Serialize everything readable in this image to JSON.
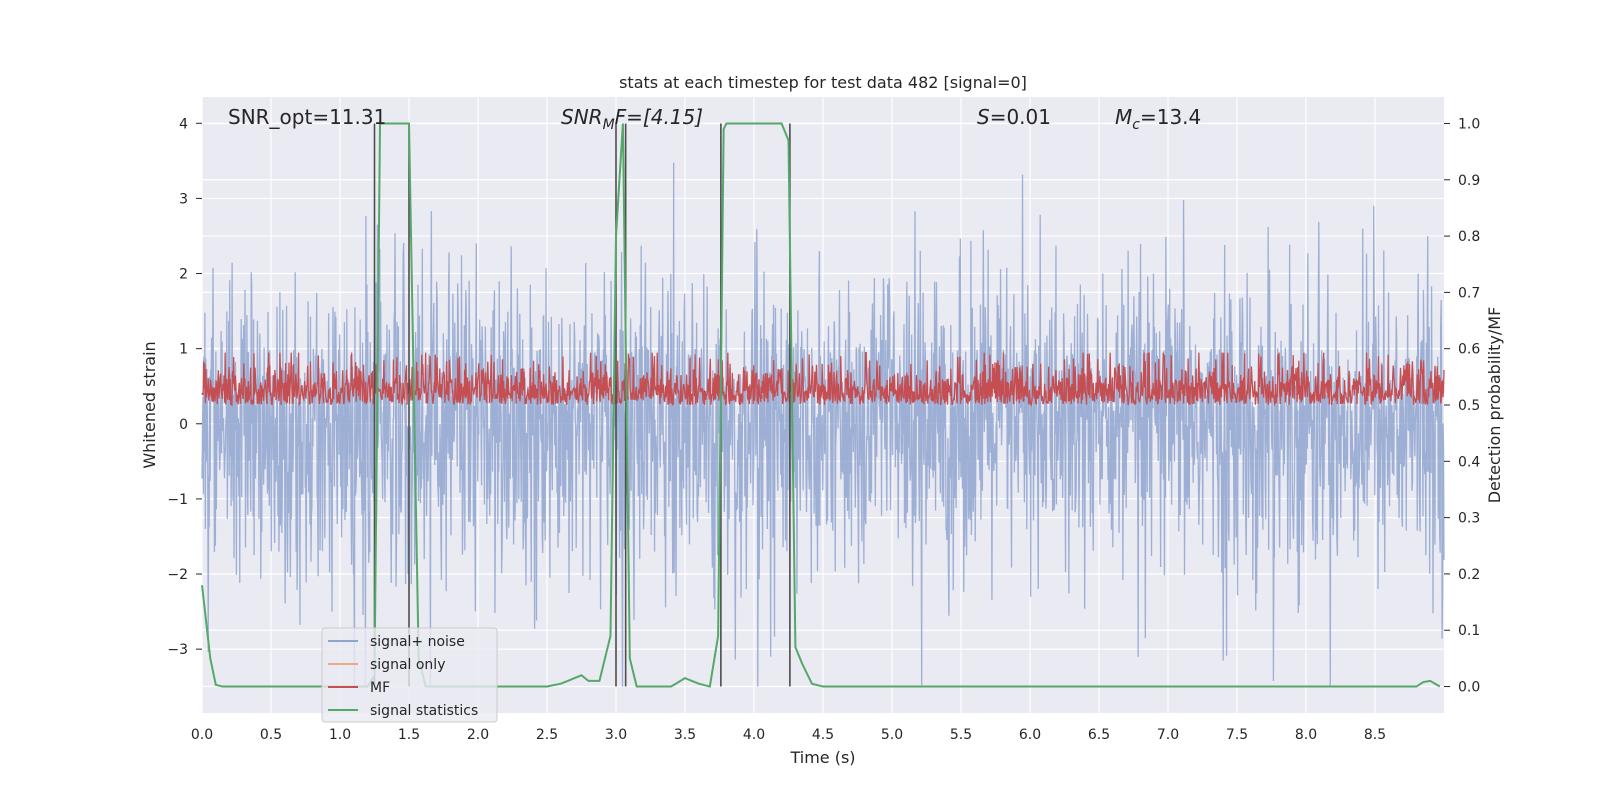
{
  "chart_data": {
    "type": "line",
    "title": "stats at each timestep for test data 482 [signal=0]",
    "xlabel": "Time (s)",
    "ylabel_left": "Whitened strain",
    "ylabel_right": "Detection probability/MF",
    "xlim": [
      0.0,
      9.0
    ],
    "ylim_left": [
      -3.85,
      4.35
    ],
    "ylim_right": [
      -0.047,
      1.047
    ],
    "x_ticks": [
      "0.0",
      "0.5",
      "1.0",
      "1.5",
      "2.0",
      "2.5",
      "3.0",
      "3.5",
      "4.0",
      "4.5",
      "5.0",
      "5.5",
      "6.0",
      "6.5",
      "7.0",
      "7.5",
      "8.0",
      "8.5"
    ],
    "x_tick_values": [
      0.0,
      0.5,
      1.0,
      1.5,
      2.0,
      2.5,
      3.0,
      3.5,
      4.0,
      4.5,
      5.0,
      5.5,
      6.0,
      6.5,
      7.0,
      7.5,
      8.0,
      8.5
    ],
    "y_left_ticks": [
      "−3",
      "−2",
      "−1",
      "0",
      "1",
      "2",
      "3",
      "4"
    ],
    "y_left_tick_values": [
      -3,
      -2,
      -1,
      0,
      1,
      2,
      3,
      4
    ],
    "y_right_ticks": [
      "0.0",
      "0.1",
      "0.2",
      "0.3",
      "0.4",
      "0.5",
      "0.6",
      "0.7",
      "0.8",
      "0.9",
      "1.0"
    ],
    "y_right_tick_values": [
      0.0,
      0.1,
      0.2,
      0.3,
      0.4,
      0.5,
      0.6,
      0.7,
      0.8,
      0.9,
      1.0
    ],
    "grid": true,
    "legend_position": "lower-left",
    "annotations": {
      "snr_opt": "SNR_opt=11.31",
      "snr_mf_main": "SNR",
      "snr_mf_sub": "M",
      "snr_mf_rest": "F=[4.15]",
      "s_main": "S",
      "s_rest": "=0.01",
      "mc_main": "M",
      "mc_sub": "c",
      "mc_rest": "=13.4"
    },
    "series": [
      {
        "name": "signal+ noise",
        "axis": "left",
        "color": "#8fa5cf",
        "description_range": [
          -3.5,
          4.0
        ],
        "typical_band": [
          -1.2,
          1.5
        ]
      },
      {
        "name": "signal only",
        "axis": "left",
        "color": "#eea886",
        "values": []
      },
      {
        "name": "MF",
        "axis": "right",
        "color": "#c44e52",
        "typical_band": [
          0.48,
          0.58
        ]
      },
      {
        "name": "signal statistics",
        "axis": "right",
        "color": "#55a868",
        "x": [
          0.0,
          0.06,
          0.1,
          0.15,
          0.2,
          1.2,
          1.25,
          1.29,
          1.32,
          1.5,
          1.57,
          1.62,
          2.5,
          2.6,
          2.65,
          2.7,
          2.75,
          2.8,
          2.88,
          2.96,
          3.0,
          3.05,
          3.1,
          3.15,
          3.2,
          3.4,
          3.5,
          3.55,
          3.6,
          3.68,
          3.74,
          3.78,
          3.8,
          4.2,
          4.25,
          4.3,
          4.35,
          4.42,
          4.5,
          8.8,
          8.85,
          8.9,
          8.97
        ],
        "y": [
          0.18,
          0.05,
          0.003,
          0.0,
          0.0,
          0.0,
          0.02,
          1.0,
          1.0,
          1.0,
          0.05,
          0.0,
          0.0,
          0.005,
          0.01,
          0.015,
          0.02,
          0.01,
          0.01,
          0.09,
          0.8,
          1.0,
          0.05,
          0.0,
          0.0,
          0.0,
          0.015,
          0.01,
          0.005,
          0.0,
          0.09,
          0.99,
          1.0,
          1.0,
          0.97,
          0.07,
          0.04,
          0.005,
          0.0,
          0.0,
          0.008,
          0.01,
          0.0
        ]
      }
    ],
    "vertical_lines": [
      1.25,
      1.5,
      3.0,
      3.07,
      3.76,
      4.26
    ]
  },
  "legend": {
    "items": [
      "signal+ noise",
      "signal only",
      "MF",
      "signal statistics"
    ]
  },
  "colors": {
    "plot_background": "#eaeaf2",
    "grid": "#ffffff",
    "vline": "#4d4d4d"
  }
}
